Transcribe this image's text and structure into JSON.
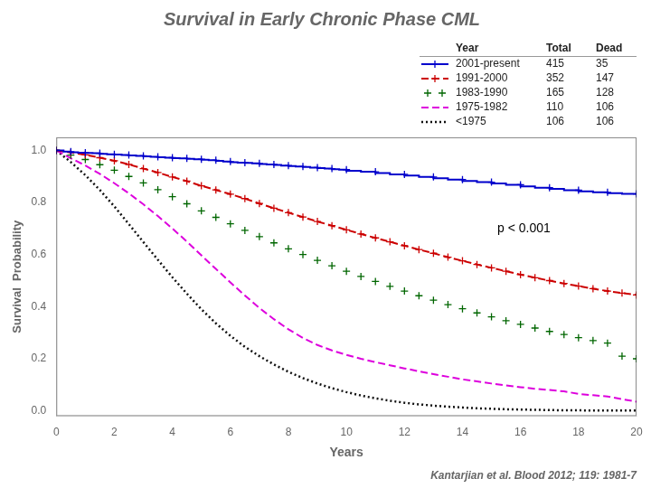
{
  "chart_data": {
    "type": "line",
    "title": "Survival in Early Chronic Phase CML",
    "subtitle": "Kantarjian et al. Blood 2012; 119: 1981-7",
    "x_label": "Years",
    "y_label": "Survival  Probability",
    "xlim": [
      0,
      20
    ],
    "ylim": [
      -0.02,
      1.05
    ],
    "xticks": [
      0,
      2,
      4,
      6,
      8,
      10,
      12,
      14,
      16,
      18,
      20
    ],
    "yticks": [
      {
        "value": 0,
        "label": "0.0"
      },
      0.2,
      0.4,
      0.6,
      0.8,
      {
        "value": 1,
        "label": "1.0"
      }
    ],
    "grid": false,
    "legend": "top",
    "legend_columns": [
      "Year",
      "Total",
      "Dead"
    ],
    "annotations": [
      "p < 0.001"
    ],
    "series": [
      {
        "name": "2001-present",
        "total": 415,
        "dead": 35,
        "color": "#0000CC",
        "line_style": "steps",
        "marker": "+",
        "x": [
          0,
          0.25,
          0.5,
          0.75,
          1,
          1.25,
          1.5,
          1.75,
          2,
          2.25,
          2.5,
          2.75,
          3,
          3.25,
          3.5,
          3.75,
          4,
          4.25,
          4.5,
          4.75,
          5,
          5.25,
          5.5,
          5.75,
          6,
          6.25,
          6.5,
          6.75,
          7,
          7.25,
          7.5,
          7.75,
          8,
          8.25,
          8.5,
          8.75,
          9,
          9.25,
          9.5,
          9.75,
          10,
          10.5,
          11,
          11.5,
          12,
          12.5,
          13,
          13.5,
          14,
          14.5,
          15,
          15.5,
          16,
          16.5,
          17,
          17.5,
          18,
          18.5,
          19,
          19.5,
          20
        ],
        "values": [
          1.0,
          1.0,
          0.995,
          0.993,
          0.991,
          0.99,
          0.989,
          0.987,
          0.985,
          0.984,
          0.982,
          0.981,
          0.979,
          0.977,
          0.975,
          0.974,
          0.972,
          0.97,
          0.969,
          0.968,
          0.966,
          0.964,
          0.962,
          0.96,
          0.957,
          0.955,
          0.953,
          0.952,
          0.95,
          0.948,
          0.946,
          0.944,
          0.942,
          0.94,
          0.938,
          0.936,
          0.934,
          0.932,
          0.93,
          0.928,
          0.926,
          0.922,
          0.918,
          0.913,
          0.908,
          0.903,
          0.898,
          0.893,
          0.888,
          0.883,
          0.878,
          0.873,
          0.868,
          0.862,
          0.857,
          0.852,
          0.847,
          0.843,
          0.839,
          0.836,
          0.833
        ]
      },
      {
        "name": "1991-2000",
        "total": 352,
        "dead": 147,
        "color": "#CC0000",
        "line_style": "dashed",
        "marker": "+",
        "x": [
          0,
          0.5,
          1,
          1.5,
          2,
          2.5,
          3,
          3.5,
          4,
          4.5,
          5,
          5.5,
          6,
          6.5,
          7,
          7.5,
          8,
          8.5,
          9,
          9.5,
          10,
          10.5,
          11,
          11.5,
          12,
          12.5,
          13,
          13.5,
          14,
          14.5,
          15,
          15.5,
          16,
          16.5,
          17,
          17.5,
          18,
          18.5,
          19,
          19.5,
          20
        ],
        "values": [
          1.0,
          0.992,
          0.983,
          0.972,
          0.96,
          0.946,
          0.93,
          0.915,
          0.898,
          0.882,
          0.864,
          0.848,
          0.832,
          0.815,
          0.796,
          0.778,
          0.761,
          0.744,
          0.727,
          0.711,
          0.695,
          0.679,
          0.664,
          0.649,
          0.634,
          0.619,
          0.605,
          0.59,
          0.576,
          0.562,
          0.549,
          0.536,
          0.523,
          0.511,
          0.5,
          0.489,
          0.479,
          0.469,
          0.46,
          0.452,
          0.445
        ]
      },
      {
        "name": "1983-1990",
        "total": 165,
        "dead": 128,
        "color": "#006600",
        "line_style": "none",
        "marker": "+",
        "x": [
          0,
          0.5,
          1,
          1.5,
          2,
          2.5,
          3,
          3.5,
          4,
          4.5,
          5,
          5.5,
          6,
          6.5,
          7,
          7.5,
          8,
          8.5,
          9,
          9.5,
          10,
          10.5,
          11,
          11.5,
          12,
          12.5,
          13,
          13.5,
          14,
          14.5,
          15,
          15.5,
          16,
          16.5,
          17,
          17.5,
          18,
          18.5,
          19,
          19.5,
          20
        ],
        "values": [
          1.0,
          0.982,
          0.965,
          0.945,
          0.924,
          0.9,
          0.875,
          0.849,
          0.822,
          0.795,
          0.768,
          0.743,
          0.718,
          0.693,
          0.669,
          0.645,
          0.622,
          0.6,
          0.578,
          0.557,
          0.536,
          0.516,
          0.497,
          0.478,
          0.46,
          0.442,
          0.425,
          0.408,
          0.392,
          0.376,
          0.361,
          0.346,
          0.332,
          0.318,
          0.305,
          0.293,
          0.281,
          0.27,
          0.26,
          0.21,
          0.2
        ]
      },
      {
        "name": "1975-1982",
        "total": 110,
        "dead": 106,
        "color": "#DD00DD",
        "line_style": "dashed",
        "marker": "none",
        "x": [
          0,
          0.5,
          1,
          1.5,
          2,
          2.5,
          3,
          3.5,
          4,
          4.5,
          5,
          5.5,
          6,
          6.5,
          7,
          7.5,
          8,
          8.5,
          9,
          9.5,
          10,
          10.5,
          11,
          11.5,
          12,
          12.5,
          13,
          13.5,
          14,
          14.5,
          15,
          15.5,
          16,
          16.5,
          17,
          17.5,
          18,
          18.5,
          19,
          19.5,
          20
        ],
        "values": [
          1.0,
          0.97,
          0.942,
          0.91,
          0.874,
          0.835,
          0.793,
          0.748,
          0.7,
          0.65,
          0.597,
          0.545,
          0.493,
          0.443,
          0.395,
          0.352,
          0.313,
          0.28,
          0.253,
          0.232,
          0.215,
          0.2,
          0.187,
          0.175,
          0.163,
          0.152,
          0.141,
          0.131,
          0.121,
          0.113,
          0.105,
          0.098,
          0.091,
          0.085,
          0.08,
          0.075,
          0.065,
          0.06,
          0.055,
          0.045,
          0.035
        ]
      },
      {
        "name": "<1975",
        "total": 106,
        "dead": 106,
        "color": "#111111",
        "line_style": "dotted",
        "marker": "none",
        "x": [
          0,
          0.5,
          1,
          1.5,
          2,
          2.5,
          3,
          3.5,
          4,
          4.5,
          5,
          5.5,
          6,
          6.5,
          7,
          7.5,
          8,
          8.5,
          9,
          9.5,
          10,
          10.5,
          11,
          11.5,
          12,
          12.5,
          13,
          13.5,
          14,
          14.5,
          15,
          15.5,
          16,
          16.5,
          17,
          17.5,
          18,
          18.5,
          19,
          19.5,
          20
        ],
        "values": [
          1.0,
          0.955,
          0.905,
          0.848,
          0.785,
          0.717,
          0.648,
          0.58,
          0.513,
          0.45,
          0.39,
          0.336,
          0.288,
          0.246,
          0.21,
          0.178,
          0.15,
          0.126,
          0.105,
          0.087,
          0.072,
          0.059,
          0.048,
          0.039,
          0.031,
          0.025,
          0.02,
          0.016,
          0.013,
          0.01,
          0.008,
          0.006,
          0.005,
          0.004,
          0.003,
          0.002,
          0.002,
          0.001,
          0.001,
          0.001,
          0.001
        ]
      }
    ]
  }
}
